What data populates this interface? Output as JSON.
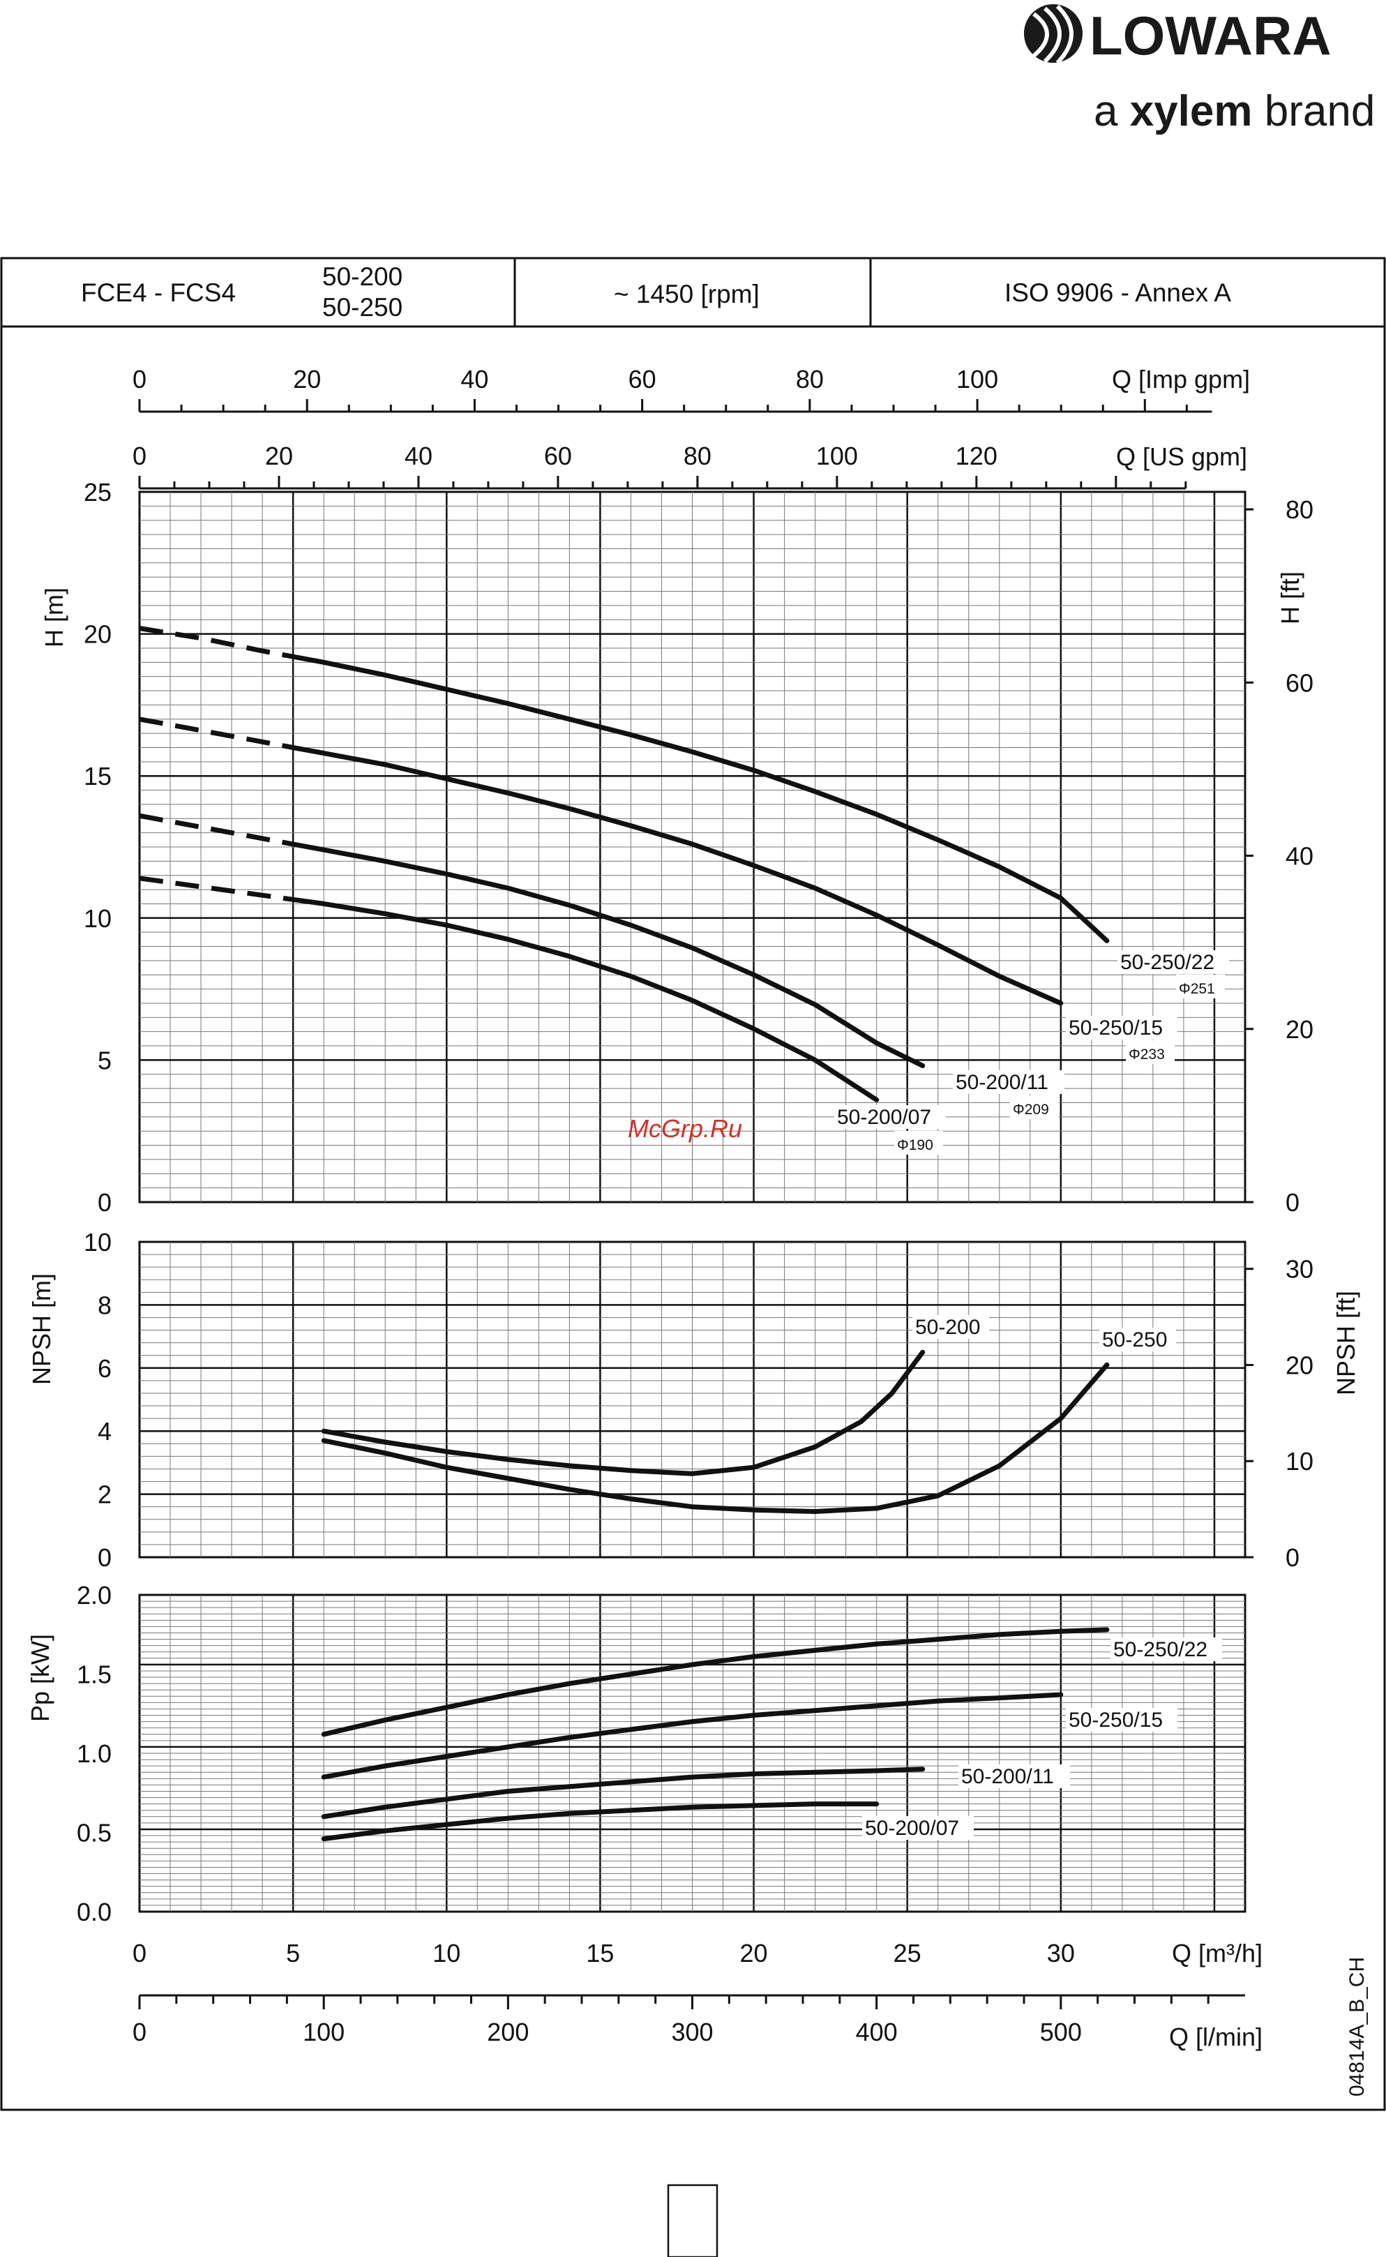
{
  "brand": {
    "name": "LOWARA",
    "tagline_prefix": "a ",
    "tagline_bold": "xylem",
    "tagline_suffix": " brand",
    "icon": "lowara-stripes-logo-icon"
  },
  "header": {
    "model": "FCE4 - FCS4",
    "sizes": [
      "50-200",
      "50-250"
    ],
    "speed": "~ 1450 [rpm]",
    "standard": "ISO 9906 - Annex A"
  },
  "watermark": "McGrp.Ru",
  "drawing_code": "04814A_B_CH",
  "colors": {
    "line": "#111111",
    "watermark": "#d0302a",
    "background": "#ffffff"
  },
  "chart_data": [
    {
      "type": "line",
      "name": "head",
      "xlabel": "Q [m³/h]",
      "ylabel": "H [m]",
      "ylabel_right": "H [ft]",
      "xlim": [
        0,
        35
      ],
      "ylim": [
        0,
        25
      ],
      "yticks": [
        0,
        5,
        10,
        15,
        20,
        25
      ],
      "yticks_right": [
        0,
        20,
        40,
        60,
        80
      ],
      "top_axes": [
        {
          "label": "Q [Imp gpm]",
          "ticks": [
            0,
            20,
            40,
            60,
            80,
            100
          ]
        },
        {
          "label": "Q [US gpm]",
          "ticks": [
            0,
            20,
            40,
            60,
            80,
            100,
            120
          ]
        }
      ],
      "grid": true,
      "series": [
        {
          "name": "50-250/22",
          "diameter": "Φ251",
          "dashed_until": 5,
          "x": [
            0,
            2,
            4,
            6,
            8,
            10,
            12,
            14,
            16,
            18,
            20,
            22,
            24,
            26,
            28,
            30,
            31.5
          ],
          "y": [
            20.2,
            19.85,
            19.4,
            19.0,
            18.55,
            18.05,
            17.55,
            17.0,
            16.45,
            15.85,
            15.2,
            14.45,
            13.65,
            12.75,
            11.8,
            10.7,
            9.2
          ]
        },
        {
          "name": "50-250/15",
          "diameter": "Φ233",
          "dashed_until": 5,
          "x": [
            0,
            2,
            4,
            6,
            8,
            10,
            12,
            14,
            16,
            18,
            20,
            22,
            24,
            26,
            28,
            30
          ],
          "y": [
            17.0,
            16.6,
            16.2,
            15.8,
            15.4,
            14.9,
            14.4,
            13.85,
            13.25,
            12.6,
            11.85,
            11.05,
            10.1,
            9.05,
            7.95,
            7.0
          ]
        },
        {
          "name": "50-200/11",
          "diameter": "Φ209",
          "dashed_until": 5,
          "x": [
            0,
            2,
            4,
            6,
            8,
            10,
            12,
            14,
            16,
            18,
            20,
            22,
            24,
            25.5
          ],
          "y": [
            13.6,
            13.2,
            12.8,
            12.4,
            12.0,
            11.55,
            11.05,
            10.45,
            9.75,
            8.95,
            8.0,
            6.95,
            5.6,
            4.8
          ]
        },
        {
          "name": "50-200/07",
          "diameter": "Φ190",
          "dashed_until": 5,
          "x": [
            0,
            2,
            4,
            6,
            8,
            10,
            12,
            14,
            16,
            18,
            20,
            22,
            24
          ],
          "y": [
            11.4,
            11.1,
            10.8,
            10.5,
            10.15,
            9.75,
            9.25,
            8.65,
            7.95,
            7.1,
            6.1,
            5.0,
            3.6
          ]
        }
      ]
    },
    {
      "type": "line",
      "name": "npsh",
      "ylabel": "NPSH [m]",
      "ylabel_right": "NPSH [ft]",
      "xlim": [
        0,
        35
      ],
      "ylim": [
        0,
        10
      ],
      "yticks": [
        0,
        2,
        4,
        6,
        8,
        10
      ],
      "yticks_right": [
        0,
        10,
        20,
        30
      ],
      "grid": true,
      "series": [
        {
          "name": "50-200",
          "x": [
            6,
            8,
            10,
            12,
            14,
            16,
            18,
            20,
            22,
            23.5,
            24.5,
            25.5
          ],
          "y": [
            4.0,
            3.65,
            3.35,
            3.1,
            2.9,
            2.75,
            2.65,
            2.85,
            3.5,
            4.3,
            5.2,
            6.5
          ]
        },
        {
          "name": "50-250",
          "x": [
            6,
            8,
            10,
            12,
            14,
            16,
            18,
            20,
            22,
            24,
            26,
            28,
            30,
            31.5
          ],
          "y": [
            3.7,
            3.3,
            2.85,
            2.5,
            2.15,
            1.85,
            1.6,
            1.5,
            1.45,
            1.55,
            1.95,
            2.9,
            4.4,
            6.1
          ]
        }
      ]
    },
    {
      "type": "line",
      "name": "power",
      "ylabel": "Pp [kW]",
      "xlabel": "Q [m³/h]",
      "xticks": [
        0,
        5,
        10,
        15,
        20,
        25,
        30
      ],
      "xlabel2": "Q [l/min]",
      "xticks2": [
        0,
        100,
        200,
        300,
        400,
        500
      ],
      "xlim": [
        0,
        35
      ],
      "ylim": [
        0,
        2
      ],
      "yticks": [
        "0.0",
        "0.5",
        "1.0",
        "1.5",
        "2.0"
      ],
      "grid": true,
      "series": [
        {
          "name": "50-250/22",
          "x": [
            6,
            8,
            10,
            12,
            14,
            16,
            18,
            20,
            22,
            24,
            26,
            28,
            30,
            31.5
          ],
          "y": [
            1.12,
            1.21,
            1.29,
            1.37,
            1.44,
            1.5,
            1.56,
            1.61,
            1.65,
            1.69,
            1.72,
            1.75,
            1.77,
            1.78
          ]
        },
        {
          "name": "50-250/15",
          "x": [
            6,
            8,
            10,
            12,
            14,
            16,
            18,
            20,
            22,
            24,
            26,
            28,
            30
          ],
          "y": [
            0.85,
            0.92,
            0.98,
            1.04,
            1.1,
            1.15,
            1.2,
            1.24,
            1.27,
            1.3,
            1.33,
            1.35,
            1.37
          ]
        },
        {
          "name": "50-200/11",
          "x": [
            6,
            8,
            10,
            12,
            14,
            16,
            18,
            20,
            22,
            24,
            25.5
          ],
          "y": [
            0.6,
            0.66,
            0.71,
            0.76,
            0.79,
            0.82,
            0.85,
            0.87,
            0.88,
            0.89,
            0.9
          ]
        },
        {
          "name": "50-200/07",
          "x": [
            6,
            8,
            10,
            12,
            14,
            16,
            18,
            20,
            22,
            24
          ],
          "y": [
            0.46,
            0.51,
            0.55,
            0.59,
            0.62,
            0.64,
            0.66,
            0.67,
            0.68,
            0.68
          ]
        }
      ]
    }
  ]
}
